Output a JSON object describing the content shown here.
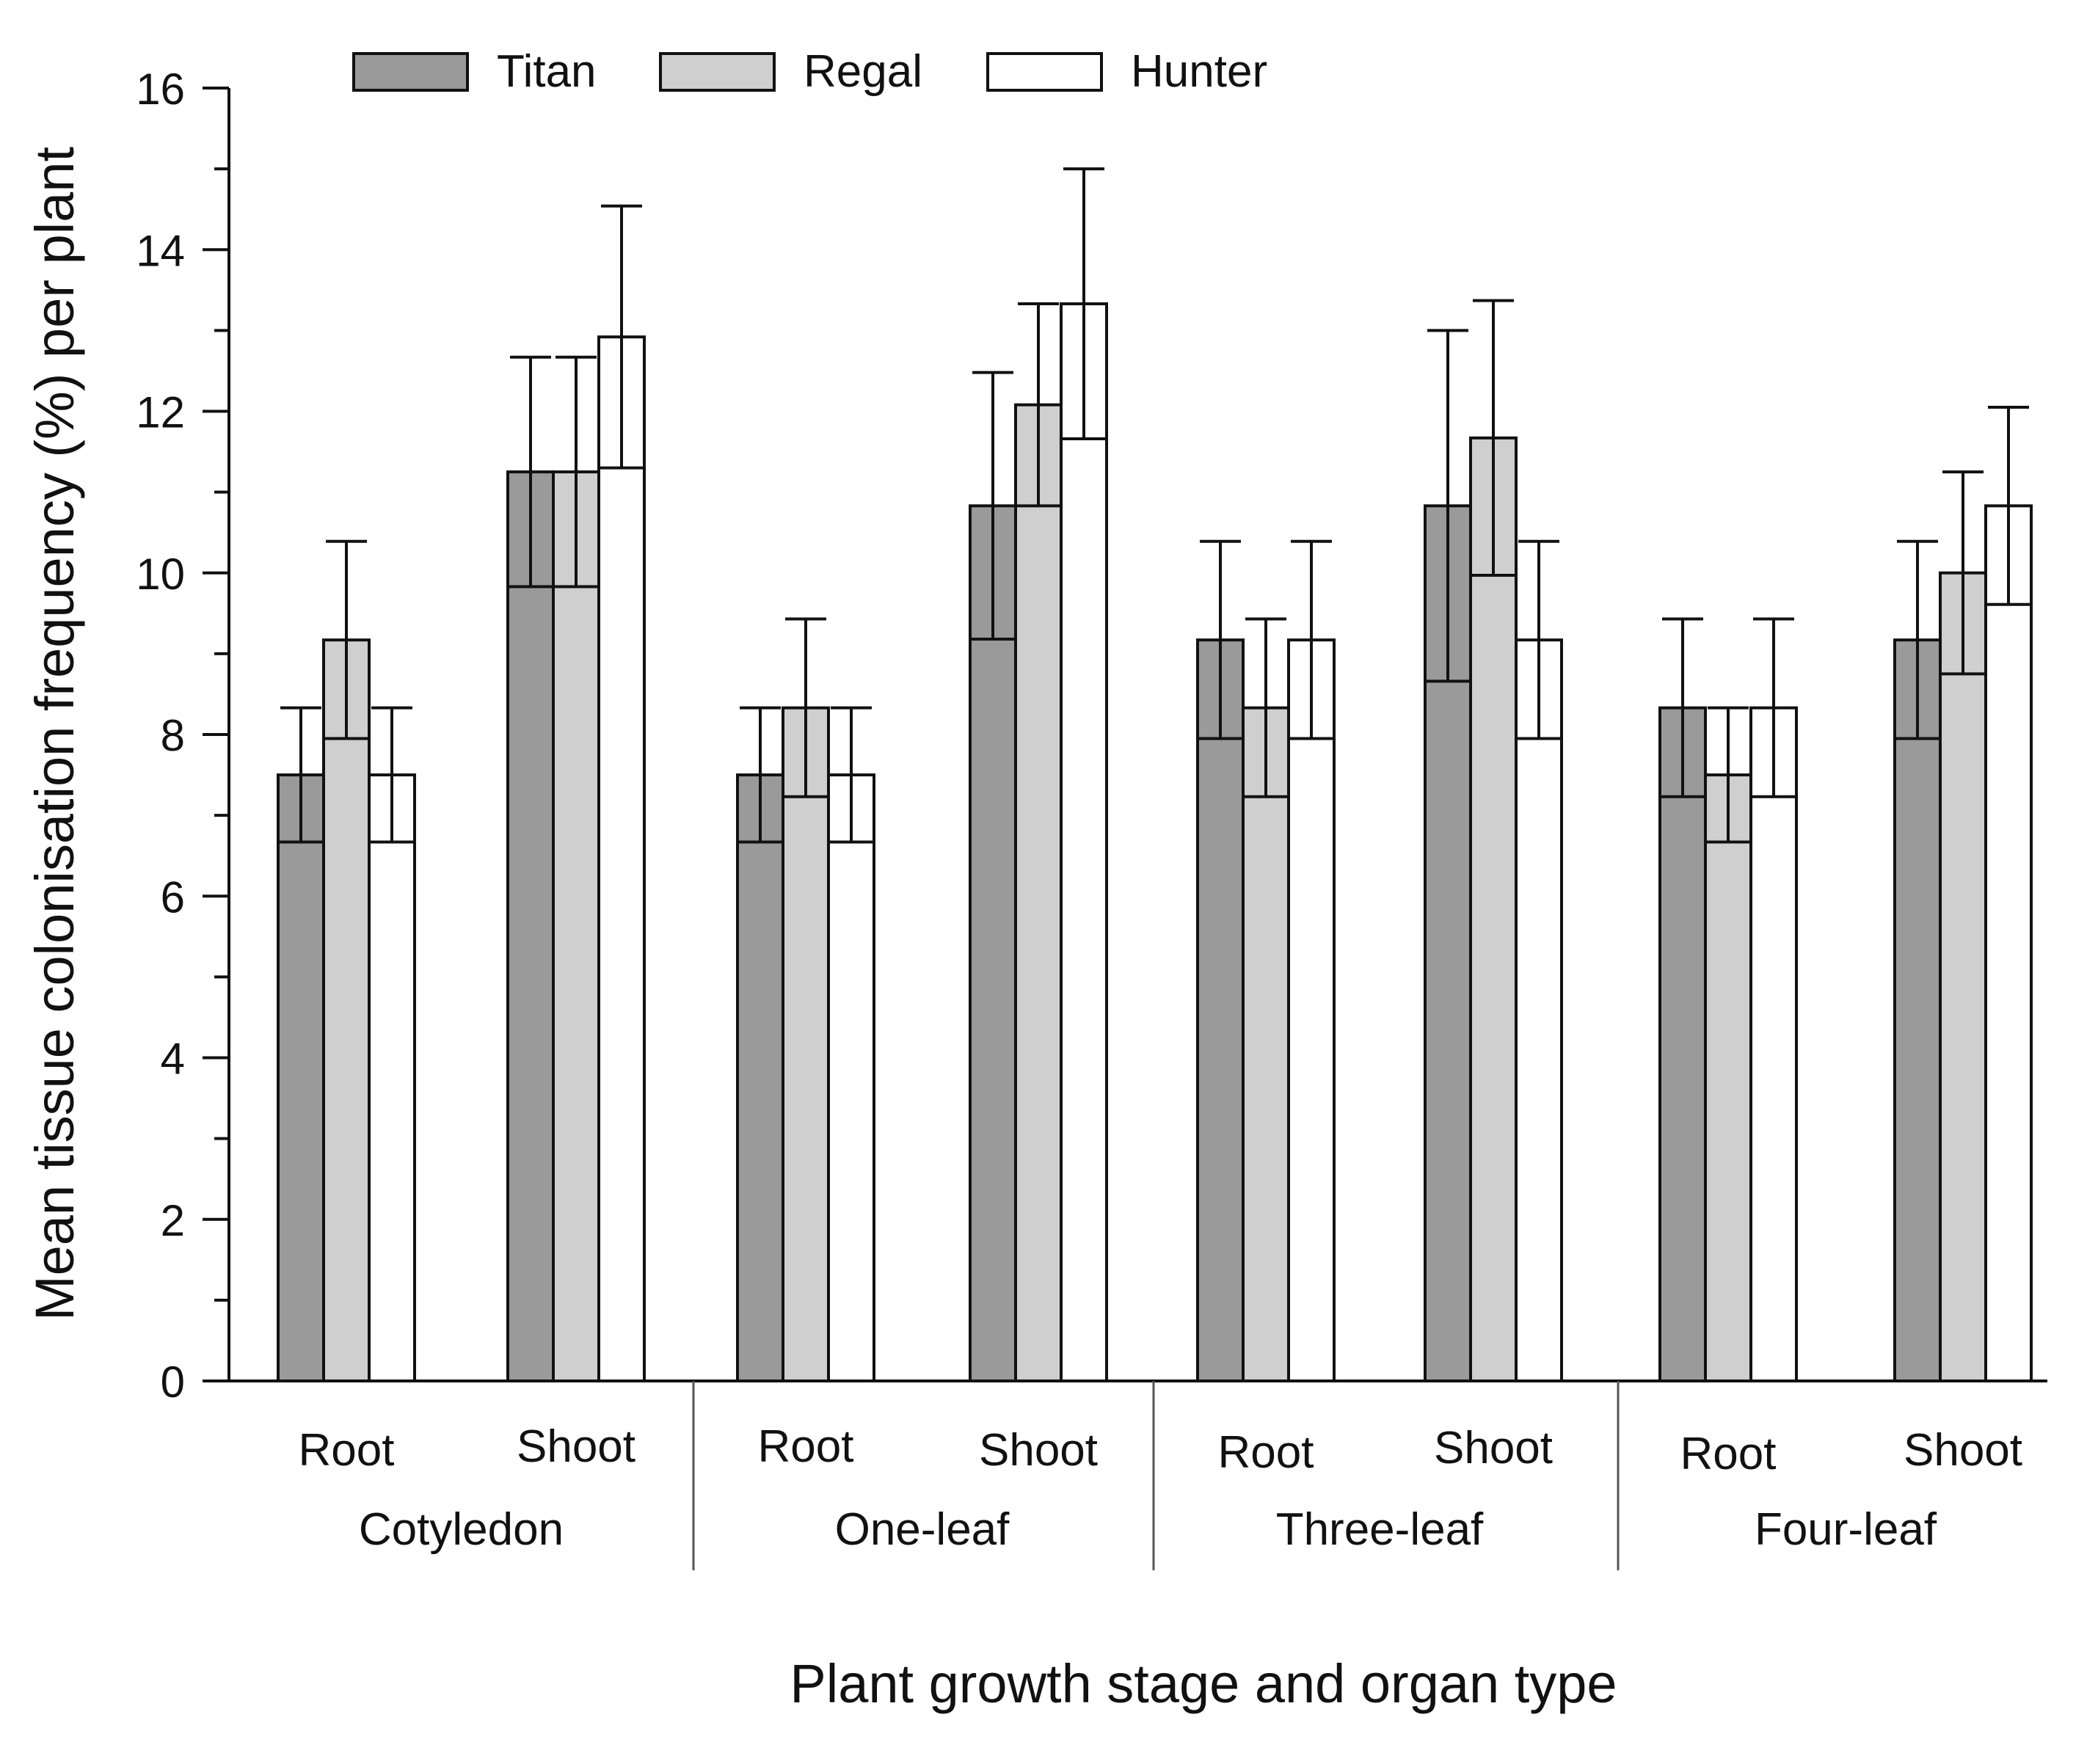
{
  "chart_data": {
    "type": "bar",
    "title": "",
    "xlabel": "Plant growth stage and organ type",
    "ylabel": "Mean tissue colonisation frequency (%) per plant",
    "ylim": [
      0,
      16
    ],
    "yticks": [
      0,
      2,
      4,
      6,
      8,
      10,
      12,
      14,
      16
    ],
    "ytick_labels": [
      "0",
      "2",
      "4",
      "6",
      "8",
      "10",
      "12",
      "14",
      "16"
    ],
    "grid": false,
    "legend_position": "top-left",
    "stages": [
      {
        "label": "Cotyledon",
        "organs": [
          "Root",
          "Shoot"
        ]
      },
      {
        "label": "One-leaf",
        "organs": [
          "Root",
          "Shoot"
        ]
      },
      {
        "label": "Three-leaf",
        "organs": [
          "Root",
          "Shoot"
        ]
      },
      {
        "label": "Four-leaf",
        "organs": [
          "Root",
          "Shoot"
        ]
      }
    ],
    "categories": [
      "Cotyledon Root",
      "Cotyledon Shoot",
      "One-leaf Root",
      "One-leaf Shoot",
      "Three-leaf Root",
      "Three-leaf Shoot",
      "Four-leaf Root",
      "Four-leaf Shoot"
    ],
    "series": [
      {
        "name": "Titan",
        "color": "#9a9a9a",
        "values": [
          7.5,
          11.25,
          7.5,
          10.83,
          9.17,
          10.83,
          8.33,
          9.17
        ],
        "errors": [
          0.83,
          1.42,
          0.83,
          1.65,
          1.22,
          2.17,
          1.1,
          1.22
        ]
      },
      {
        "name": "Regal",
        "color": "#cfcfcf",
        "values": [
          9.17,
          11.25,
          8.33,
          12.08,
          8.33,
          11.67,
          7.5,
          10.0
        ],
        "errors": [
          1.22,
          1.42,
          1.1,
          1.25,
          1.1,
          1.7,
          0.83,
          1.25
        ]
      },
      {
        "name": "Hunter",
        "color": "#ffffff",
        "values": [
          7.5,
          12.92,
          7.5,
          13.33,
          9.17,
          9.17,
          8.33,
          10.83
        ],
        "errors": [
          0.83,
          1.62,
          0.83,
          1.67,
          1.22,
          1.22,
          1.1,
          1.22
        ]
      }
    ]
  }
}
